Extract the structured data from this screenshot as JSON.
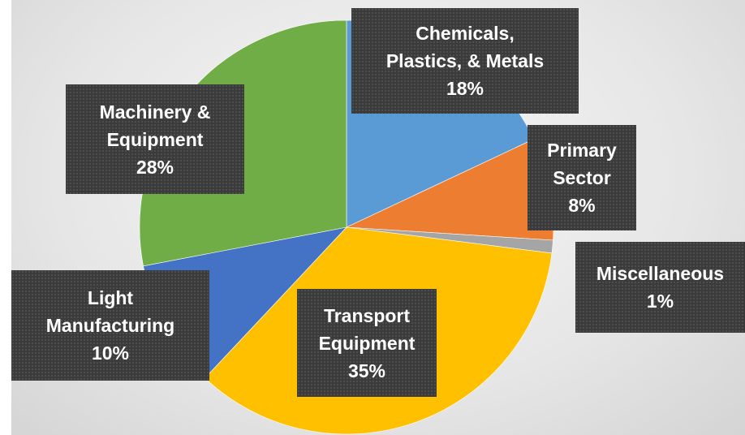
{
  "chart_data": {
    "type": "pie",
    "title": "",
    "slices": [
      {
        "key": "chemicals",
        "lines": [
          "Chemicals,",
          "Plastics, & Metals"
        ],
        "pct_label": "18%",
        "value": 18,
        "color": "#5B9BD5"
      },
      {
        "key": "primary",
        "lines": [
          "Primary",
          "Sector"
        ],
        "pct_label": "8%",
        "value": 8,
        "color": "#ED7D31"
      },
      {
        "key": "misc",
        "lines": [
          "Miscellaneous"
        ],
        "pct_label": "1%",
        "value": 1,
        "color": "#A5A5A5"
      },
      {
        "key": "transport",
        "lines": [
          "Transport",
          "Equipment"
        ],
        "pct_label": "35%",
        "value": 35,
        "color": "#FFC000"
      },
      {
        "key": "light",
        "lines": [
          "Light",
          "Manufacturing"
        ],
        "pct_label": "10%",
        "value": 10,
        "color": "#4472C4"
      },
      {
        "key": "machinery",
        "lines": [
          "Machinery &",
          "Equipment"
        ],
        "pct_label": "28%",
        "value": 28,
        "color": "#70AD47"
      }
    ],
    "start_angle_deg": 0,
    "direction": "clockwise",
    "legend": "none"
  }
}
